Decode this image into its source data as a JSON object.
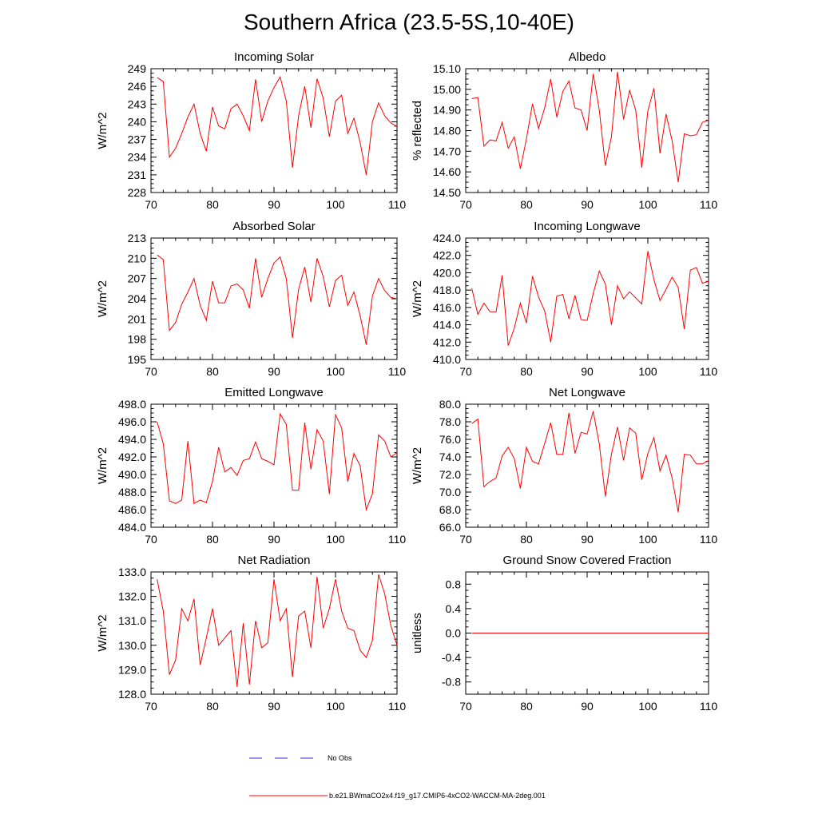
{
  "page": {
    "title": "Southern Africa (23.5-5S,10-40E)"
  },
  "colors": {
    "model": "#ff0000",
    "obs": "#3a3acc",
    "axis": "#000000"
  },
  "legend": [
    {
      "label": "No Obs",
      "style": "dashed",
      "color": "#3a3acc"
    },
    {
      "label": "b.e21.BWmaCO2x4.f19_g17.CMIP6-4xCO2-WACCM-MA-2deg.001",
      "style": "solid",
      "color": "#ff0000"
    }
  ],
  "chart_data": [
    {
      "type": "line",
      "title": "Incoming Solar",
      "ylabel": "W/m^2",
      "xlim": [
        70,
        110
      ],
      "ylim": [
        228,
        249
      ],
      "xticks": [
        "70",
        "80",
        "90",
        "100",
        "110"
      ],
      "yticks": [
        "228",
        "231",
        "234",
        "237",
        "240",
        "243",
        "246",
        "249"
      ],
      "x": [
        71,
        72,
        73,
        74,
        75,
        76,
        77,
        78,
        79,
        80,
        81,
        82,
        83,
        84,
        85,
        86,
        87,
        88,
        89,
        90,
        91,
        92,
        93,
        94,
        95,
        96,
        97,
        98,
        99,
        100,
        101,
        102,
        103,
        104,
        105,
        106,
        107,
        108,
        109,
        110
      ],
      "series": [
        {
          "values": [
            247.5,
            246.8,
            234,
            235.5,
            238,
            240.8,
            243,
            238,
            235,
            242.5,
            239.3,
            238.8,
            242.2,
            243,
            241,
            238.5,
            247.2,
            240,
            243.5,
            245.8,
            247.6,
            243.5,
            232.2,
            241,
            246,
            239,
            247.3,
            244,
            237.5,
            243.5,
            244.5,
            238,
            240.6,
            236.5,
            231,
            240,
            243.2,
            241,
            239.8,
            239.2
          ]
        }
      ]
    },
    {
      "type": "line",
      "title": "Albedo",
      "ylabel": "% reflected",
      "xlim": [
        70,
        110
      ],
      "ylim": [
        14.5,
        15.1
      ],
      "xticks": [
        "70",
        "80",
        "90",
        "100",
        "110"
      ],
      "yticks": [
        "14.50",
        "14.60",
        "14.70",
        "14.80",
        "14.90",
        "15.00",
        "15.10"
      ],
      "x": [
        71,
        72,
        73,
        74,
        75,
        76,
        77,
        78,
        79,
        80,
        81,
        82,
        83,
        84,
        85,
        86,
        87,
        88,
        89,
        90,
        91,
        92,
        93,
        94,
        95,
        96,
        97,
        98,
        99,
        100,
        101,
        102,
        103,
        104,
        105,
        106,
        107,
        108,
        109,
        110
      ],
      "series": [
        {
          "values": [
            14.955,
            14.96,
            14.725,
            14.755,
            14.75,
            14.84,
            14.715,
            14.77,
            14.615,
            14.76,
            14.93,
            14.81,
            14.91,
            15.05,
            14.865,
            14.99,
            15.04,
            14.91,
            14.9,
            14.8,
            15.075,
            14.9,
            14.63,
            14.77,
            15.085,
            14.855,
            14.995,
            14.9,
            14.62,
            14.895,
            15.005,
            14.69,
            14.88,
            14.75,
            14.55,
            14.785,
            14.775,
            14.78,
            14.84,
            14.85
          ]
        }
      ]
    },
    {
      "type": "line",
      "title": "Absorbed Solar",
      "ylabel": "W/m^2",
      "xlim": [
        70,
        110
      ],
      "ylim": [
        195,
        213
      ],
      "xticks": [
        "70",
        "80",
        "90",
        "100",
        "110"
      ],
      "yticks": [
        "195",
        "198",
        "201",
        "204",
        "207",
        "210",
        "213"
      ],
      "x": [
        71,
        72,
        73,
        74,
        75,
        76,
        77,
        78,
        79,
        80,
        81,
        82,
        83,
        84,
        85,
        86,
        87,
        88,
        89,
        90,
        91,
        92,
        93,
        94,
        95,
        96,
        97,
        98,
        99,
        100,
        101,
        102,
        103,
        104,
        105,
        106,
        107,
        108,
        109,
        110
      ],
      "series": [
        {
          "values": [
            210.5,
            209.8,
            199.3,
            200.5,
            203.2,
            205,
            207,
            203,
            200.8,
            206.6,
            203.4,
            203.4,
            205.9,
            206.2,
            205.3,
            202.6,
            210,
            204.2,
            207,
            209.3,
            210.2,
            207,
            198.2,
            205.4,
            208.7,
            203.5,
            210,
            207.3,
            202.8,
            206.7,
            207.5,
            203,
            205,
            201.5,
            197.2,
            204.4,
            207,
            205.2,
            204.2,
            204
          ]
        }
      ]
    },
    {
      "type": "line",
      "title": "Incoming Longwave",
      "ylabel": "W/m^2",
      "xlim": [
        70,
        110
      ],
      "ylim": [
        410,
        424
      ],
      "xticks": [
        "70",
        "80",
        "90",
        "100",
        "110"
      ],
      "yticks": [
        "410.0",
        "412.0",
        "414.0",
        "416.0",
        "418.0",
        "420.0",
        "422.0",
        "424.0"
      ],
      "x": [
        71,
        72,
        73,
        74,
        75,
        76,
        77,
        78,
        79,
        80,
        81,
        82,
        83,
        84,
        85,
        86,
        87,
        88,
        89,
        90,
        91,
        92,
        93,
        94,
        95,
        96,
        97,
        98,
        99,
        100,
        101,
        102,
        103,
        104,
        105,
        106,
        107,
        108,
        109,
        110
      ],
      "series": [
        {
          "values": [
            418.2,
            415.2,
            416.5,
            415.5,
            415.5,
            419.7,
            411.6,
            413.6,
            416.5,
            414.2,
            419.6,
            417.2,
            415.6,
            412,
            417.3,
            417.5,
            414.7,
            417.4,
            414.6,
            414.5,
            417.6,
            420.2,
            418.7,
            414,
            418.5,
            417,
            417.8,
            417.1,
            416.4,
            422.5,
            419.2,
            416.8,
            418.1,
            419.5,
            418.3,
            413.5,
            420.3,
            420.6,
            418.8,
            419
          ]
        }
      ]
    },
    {
      "type": "line",
      "title": "Emitted Longwave",
      "ylabel": "W/m^2",
      "xlim": [
        70,
        110
      ],
      "ylim": [
        484,
        498
      ],
      "xticks": [
        "70",
        "80",
        "90",
        "100",
        "110"
      ],
      "yticks": [
        "484.0",
        "486.0",
        "488.0",
        "490.0",
        "492.0",
        "494.0",
        "496.0",
        "498.0"
      ],
      "x": [
        71,
        72,
        73,
        74,
        75,
        76,
        77,
        78,
        79,
        80,
        81,
        82,
        83,
        84,
        85,
        86,
        87,
        88,
        89,
        90,
        91,
        92,
        93,
        94,
        95,
        96,
        97,
        98,
        99,
        100,
        101,
        102,
        103,
        104,
        105,
        106,
        107,
        108,
        109,
        110
      ],
      "series": [
        {
          "values": [
            496,
            493.5,
            487,
            486.7,
            487.1,
            493.8,
            486.7,
            487.1,
            486.8,
            489.2,
            493.1,
            490.3,
            490.8,
            489.9,
            491.6,
            491.8,
            493.7,
            491.8,
            491.5,
            491.1,
            496.9,
            495.7,
            488.2,
            488.2,
            495.9,
            490.6,
            495.1,
            493.8,
            487.8,
            496.8,
            495.3,
            489.2,
            492.4,
            491,
            486,
            487.8,
            494.5,
            493.8,
            492,
            492.5
          ]
        }
      ]
    },
    {
      "type": "line",
      "title": "Net Longwave",
      "ylabel": "W/m^2",
      "xlim": [
        70,
        110
      ],
      "ylim": [
        66,
        80
      ],
      "xticks": [
        "70",
        "80",
        "90",
        "100",
        "110"
      ],
      "yticks": [
        "66.0",
        "68.0",
        "70.0",
        "72.0",
        "74.0",
        "76.0",
        "78.0",
        "80.0"
      ],
      "x": [
        71,
        72,
        73,
        74,
        75,
        76,
        77,
        78,
        79,
        80,
        81,
        82,
        83,
        84,
        85,
        86,
        87,
        88,
        89,
        90,
        91,
        92,
        93,
        94,
        95,
        96,
        97,
        98,
        99,
        100,
        101,
        102,
        103,
        104,
        105,
        106,
        107,
        108,
        109,
        110
      ],
      "series": [
        {
          "values": [
            77.8,
            78.3,
            70.6,
            71.2,
            71.6,
            74.1,
            75.1,
            73.8,
            70.4,
            75.1,
            73.5,
            73.2,
            75.5,
            77.9,
            74.3,
            74.3,
            79,
            74.4,
            76.8,
            76.6,
            79.2,
            75.5,
            69.5,
            74.3,
            77.4,
            73.6,
            77.3,
            76.7,
            71.4,
            74.4,
            76.2,
            72.4,
            74.2,
            71.6,
            67.7,
            74.3,
            74.2,
            73.2,
            73.2,
            73.6
          ]
        }
      ]
    },
    {
      "type": "line",
      "title": "Net Radiation",
      "ylabel": "W/m^2",
      "xlim": [
        70,
        110
      ],
      "ylim": [
        128,
        133
      ],
      "xticks": [
        "70",
        "80",
        "90",
        "100",
        "110"
      ],
      "yticks": [
        "128.0",
        "129.0",
        "130.0",
        "131.0",
        "132.0",
        "133.0"
      ],
      "x": [
        71,
        72,
        73,
        74,
        75,
        76,
        77,
        78,
        79,
        80,
        81,
        82,
        83,
        84,
        85,
        86,
        87,
        88,
        89,
        90,
        91,
        92,
        93,
        94,
        95,
        96,
        97,
        98,
        99,
        100,
        101,
        102,
        103,
        104,
        105,
        106,
        107,
        108,
        109,
        110
      ],
      "series": [
        {
          "values": [
            132.7,
            131.4,
            128.8,
            129.4,
            131.5,
            131,
            131.9,
            129.2,
            130.3,
            131.5,
            130,
            130.3,
            130.6,
            128.3,
            130.9,
            128.4,
            131,
            129.9,
            130.1,
            132.7,
            131,
            131.5,
            128.7,
            131.2,
            131.4,
            129.9,
            132.8,
            130.7,
            131.5,
            132.7,
            131.4,
            130.7,
            130.6,
            129.8,
            129.5,
            130.2,
            132.9,
            132.1,
            130.8,
            130
          ]
        }
      ]
    },
    {
      "type": "line",
      "title": "Ground Snow Covered Fraction",
      "ylabel": "unitless",
      "xlim": [
        70,
        110
      ],
      "ylim": [
        -1,
        1
      ],
      "xticks": [
        "70",
        "80",
        "90",
        "100",
        "110"
      ],
      "yticks": [
        "-0.8",
        "-0.4",
        "0.0",
        "0.4",
        "0.8"
      ],
      "ytick_values": [
        -0.8,
        -0.4,
        0.0,
        0.4,
        0.8
      ],
      "x": [
        71,
        110
      ],
      "series": [
        {
          "values": [
            0,
            0
          ]
        }
      ]
    }
  ]
}
